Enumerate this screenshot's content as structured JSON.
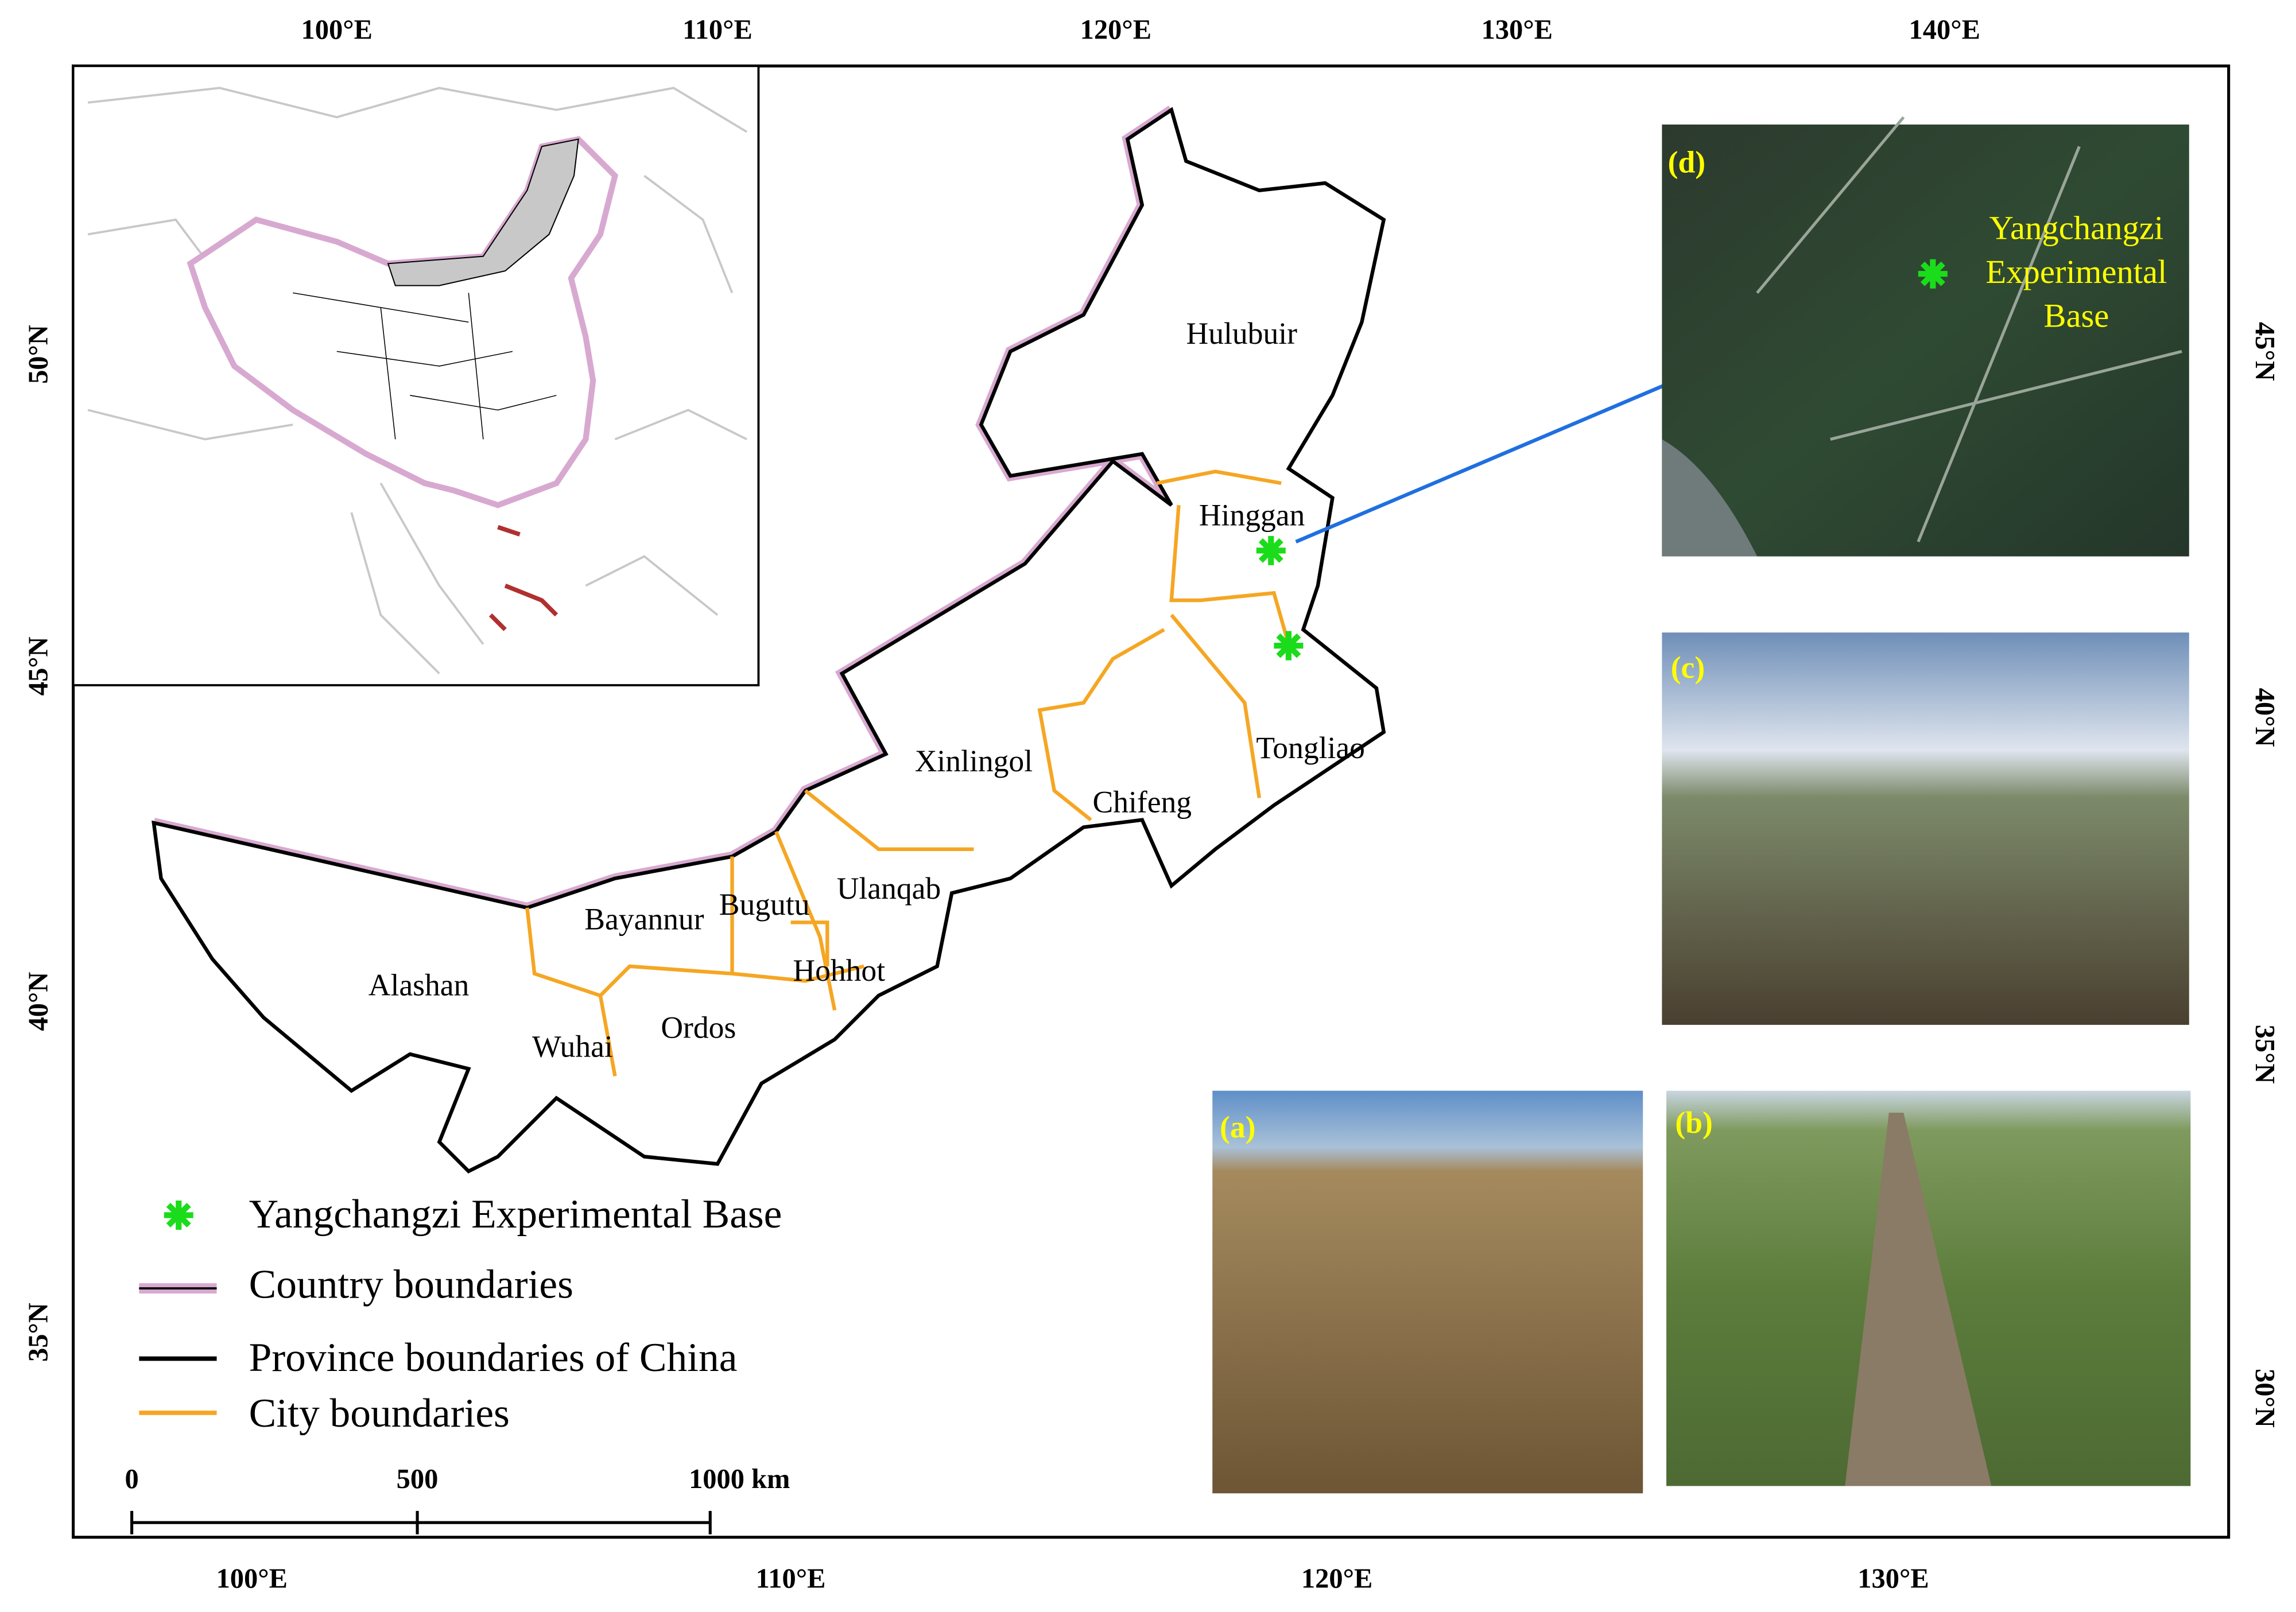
{
  "map": {
    "top_axis_labels": [
      "100°E",
      "110°E",
      "120°E",
      "130°E",
      "140°E"
    ],
    "bottom_axis_labels": [
      "100°E",
      "110°E",
      "120°E",
      "130°E"
    ],
    "left_axis_labels": [
      "50°N",
      "45°N",
      "40°N",
      "35°N"
    ],
    "right_axis_labels": [
      "45°N",
      "40°N",
      "35°N",
      "30°N"
    ],
    "regions": [
      "Hulubuir",
      "Hinggan",
      "Xinlingol",
      "Tongliao",
      "Chifeng",
      "Ulanqab",
      "Bugutu",
      "Bayannur",
      "Hohhot",
      "Alashan",
      "Ordos",
      "Wuhai"
    ],
    "legend": [
      "Yangchangzi Experimental Base",
      "Country boundaries",
      "Province boundaries of China",
      "City boundaries"
    ],
    "scale_bar": {
      "labels": [
        "0",
        "500",
        "1000 km"
      ]
    },
    "photos": [
      {
        "label": "(a)"
      },
      {
        "label": "(b)"
      },
      {
        "label": "(c)"
      },
      {
        "label": "(d)",
        "caption": [
          "Yangchangzi",
          "Experimental",
          "Base"
        ]
      }
    ]
  }
}
